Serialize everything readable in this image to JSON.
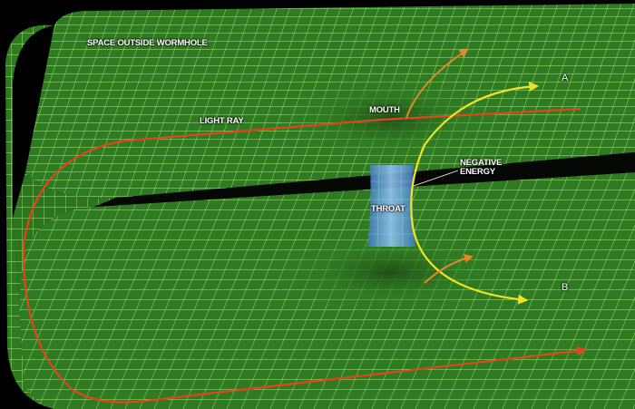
{
  "labels": {
    "space_outside": "SPACE OUTSIDE WORMHOLE",
    "light_ray": "LIGHT RAY",
    "mouth": "MOUTH",
    "negative_energy": "NEGATIVE ENERGY",
    "throat": "THROAT",
    "point_a": "A",
    "point_b": "B"
  },
  "colors": {
    "background": "#000000",
    "grid_fill": "#2f7a22",
    "grid_line": "#a8f07a",
    "throat": "#6aa6d8",
    "light_ray": "#e0471b",
    "negative_energy_ray": "#f2e21f",
    "deflected_ray": "#e8862a",
    "text": "#ffffff"
  }
}
